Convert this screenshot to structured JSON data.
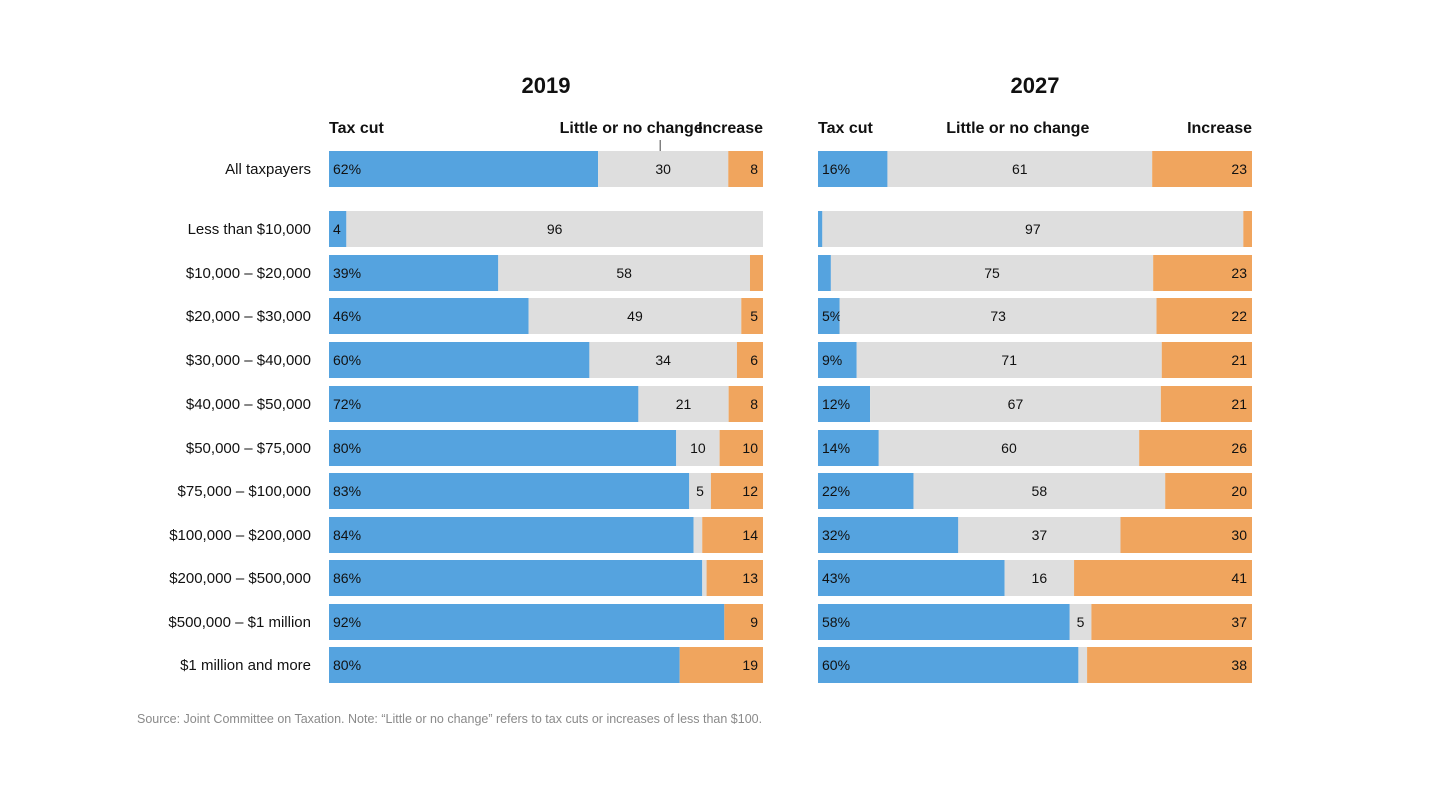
{
  "colors": {
    "tax_cut": "#55a3df",
    "little_or_no_change": "#dedede",
    "increase": "#f0a55e"
  },
  "source_note": "Source: Joint Committee on Taxation. Note: “Little or no change” refers to tax cuts or increases of less than $100.",
  "chart_data": [
    {
      "type": "bar",
      "orientation": "horizontal-stacked-100",
      "title": "2019",
      "column_headers": [
        "Tax cut",
        "Little or no change",
        "Increase"
      ],
      "categories": [
        "All taxpayers",
        "Less than $10,000",
        "$10,000 – $20,000",
        "$20,000 – $30,000",
        "$30,000 – $40,000",
        "$40,000 – $50,000",
        "$50,000 – $75,000",
        "$75,000 – $100,000",
        "$100,000 – $200,000",
        "$200,000 – $500,000",
        "$500,000 – $1 million",
        "$1 million and more"
      ],
      "series": [
        {
          "name": "Tax cut",
          "values": [
            62,
            4,
            39,
            46,
            60,
            72,
            80,
            83,
            84,
            86,
            92,
            80
          ],
          "labels": [
            "62%",
            "4",
            "39%",
            "46%",
            "60%",
            "72%",
            "80%",
            "83%",
            "84%",
            "86%",
            "92%",
            "80%"
          ]
        },
        {
          "name": "Little or no change",
          "values": [
            30,
            96,
            58,
            49,
            34,
            21,
            10,
            5,
            2,
            1,
            0,
            0
          ],
          "labels": [
            "30",
            "96",
            "58",
            "49",
            "34",
            "21",
            "10",
            "5",
            "",
            "",
            "",
            ""
          ]
        },
        {
          "name": "Increase",
          "values": [
            8,
            0,
            3,
            5,
            6,
            8,
            10,
            12,
            14,
            13,
            9,
            19
          ],
          "labels": [
            "8",
            "",
            "",
            "5",
            "6",
            "8",
            "10",
            "12",
            "14",
            "13",
            "9",
            "19"
          ]
        }
      ],
      "xlim": [
        0,
        100
      ]
    },
    {
      "type": "bar",
      "orientation": "horizontal-stacked-100",
      "title": "2027",
      "column_headers": [
        "Tax cut",
        "Little or no change",
        "Increase"
      ],
      "categories": [
        "All taxpayers",
        "Less than $10,000",
        "$10,000 – $20,000",
        "$20,000 – $30,000",
        "$30,000 – $40,000",
        "$40,000 – $50,000",
        "$50,000 – $75,000",
        "$75,000 – $100,000",
        "$100,000 – $200,000",
        "$200,000 – $500,000",
        "$500,000 – $1 million",
        "$1 million and more"
      ],
      "series": [
        {
          "name": "Tax cut",
          "values": [
            16,
            1,
            3,
            5,
            9,
            12,
            14,
            22,
            32,
            43,
            58,
            60
          ],
          "labels": [
            "16%",
            "",
            "",
            "5%",
            "9%",
            "12%",
            "14%",
            "22%",
            "32%",
            "43%",
            "58%",
            "60%"
          ]
        },
        {
          "name": "Little or no change",
          "values": [
            61,
            97,
            75,
            73,
            71,
            67,
            60,
            58,
            37,
            16,
            5,
            2
          ],
          "labels": [
            "61",
            "97",
            "75",
            "73",
            "71",
            "67",
            "60",
            "58",
            "37",
            "16",
            "5",
            ""
          ]
        },
        {
          "name": "Increase",
          "values": [
            23,
            2,
            23,
            22,
            21,
            21,
            26,
            20,
            30,
            41,
            37,
            38
          ],
          "labels": [
            "23",
            "",
            "23",
            "22",
            "21",
            "21",
            "26",
            "20",
            "30",
            "41",
            "37",
            "38"
          ]
        }
      ],
      "xlim": [
        0,
        100
      ]
    }
  ]
}
